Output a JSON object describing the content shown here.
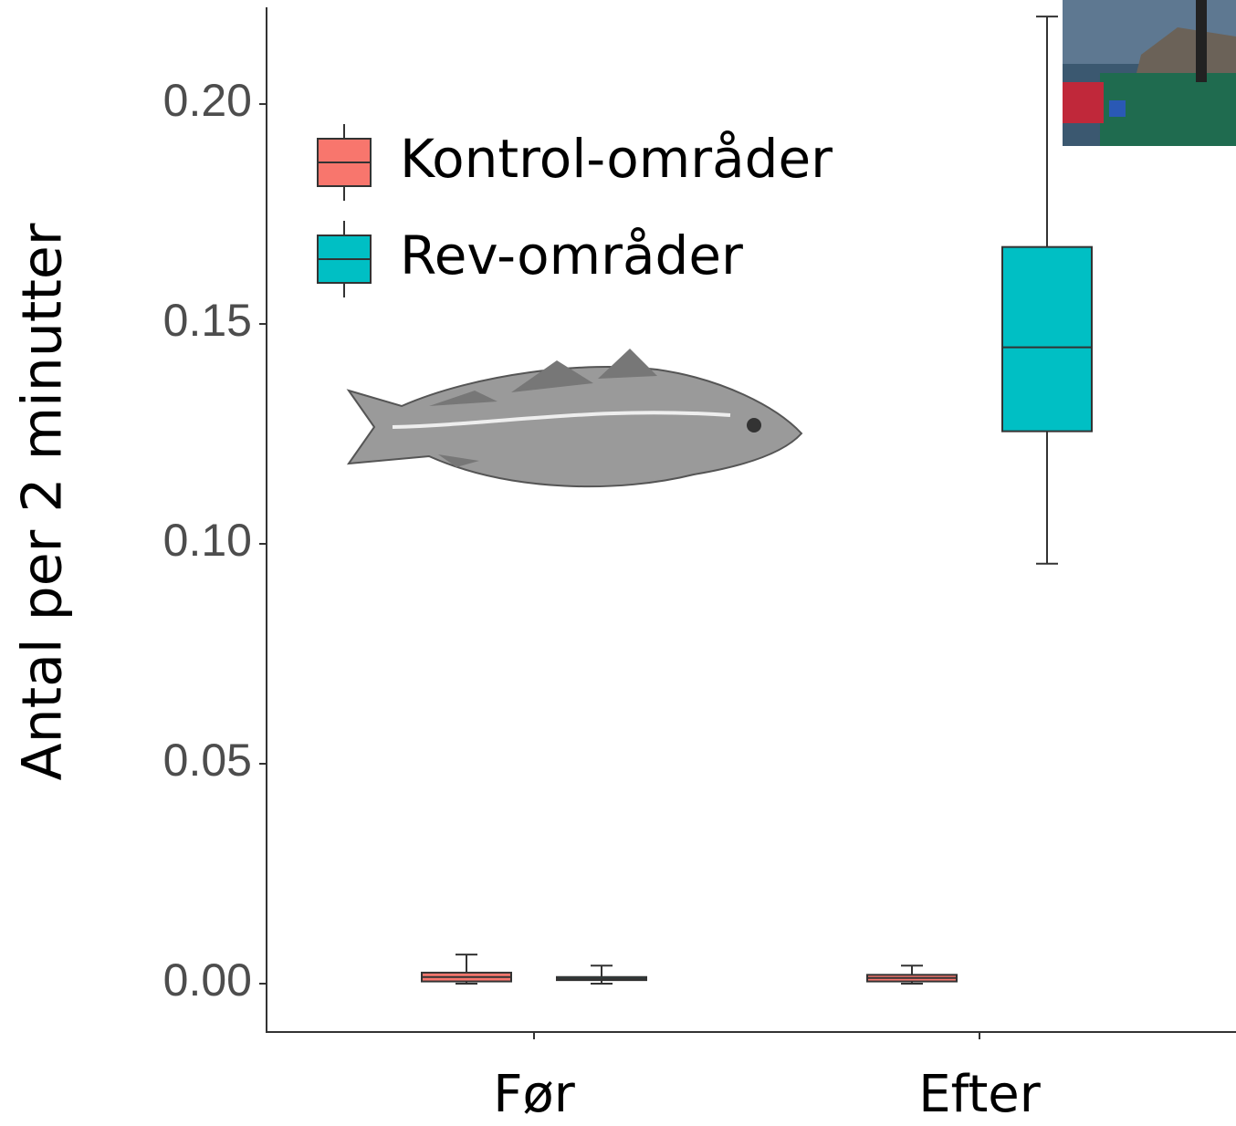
{
  "chart_data": {
    "type": "box",
    "y_label": "Antal per 2 minutter",
    "categories": [
      "Før",
      "Efter"
    ],
    "series": [
      {
        "name": "Kontrol-områder",
        "color": "#f8766d",
        "min": [
          0.0,
          0.0
        ],
        "q1": [
          0.0005,
          0.0005
        ],
        "median": [
          0.0015,
          0.0013
        ],
        "q3": [
          0.0025,
          0.002
        ],
        "max": [
          0.0066,
          0.0041
        ]
      },
      {
        "name": "Rev-områder",
        "color": "#00bfc4",
        "min": [
          0.0,
          0.0955
        ],
        "q1": [
          0.0008,
          0.1256
        ],
        "median": [
          0.0011,
          0.1447
        ],
        "q3": [
          0.0015,
          0.1675
        ],
        "max": [
          0.0041,
          0.2199
        ]
      }
    ],
    "ylim": [
      -0.011,
      0.222
    ],
    "yticks": [
      {
        "value": 0,
        "label": "0.00"
      },
      {
        "value": 0.05,
        "label": "0.05"
      },
      {
        "value": 0.1,
        "label": "0.10"
      },
      {
        "value": 0.15,
        "label": "0.15"
      },
      {
        "value": 0.2,
        "label": "0.20"
      }
    ],
    "legend": "top-left",
    "grid": false
  }
}
